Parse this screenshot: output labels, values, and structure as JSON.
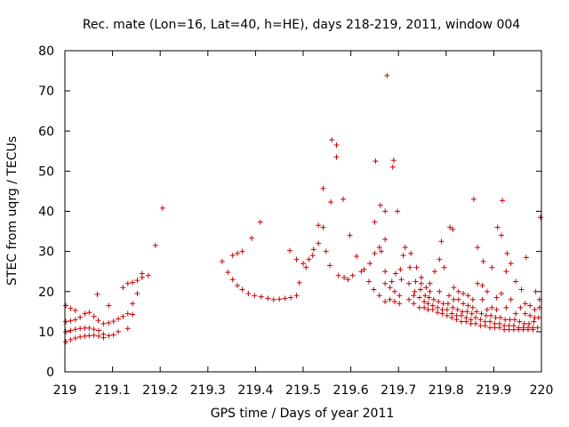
{
  "chart_data": {
    "type": "scatter",
    "title": "Rec. mate (Lon=16, Lat=40, h=HE), days 218-219, 2011, window 004",
    "xlabel": "GPS time / Days of year 2011",
    "ylabel": "STEC from uqrg / TECUs",
    "xlim": [
      219,
      220
    ],
    "ylim": [
      0,
      80
    ],
    "xticks": [
      219,
      219.1,
      219.2,
      219.3,
      219.4,
      219.5,
      219.6,
      219.7,
      219.8,
      219.9,
      220
    ],
    "xtick_labels": [
      "219",
      "219.1",
      "219.2",
      "219.3",
      "219.4",
      "219.5",
      "219.6",
      "219.7",
      "219.8",
      "219.9",
      "220"
    ],
    "yticks": [
      0,
      10,
      20,
      30,
      40,
      50,
      60,
      70,
      80
    ],
    "ytick_labels": [
      "0",
      "10",
      "20",
      "30",
      "40",
      "50",
      "60",
      "70",
      "80"
    ],
    "grid": false,
    "marker": "+",
    "color": "#cc0000",
    "series": [
      {
        "name": "STEC",
        "points": [
          [
            219.002,
            16.5
          ],
          [
            219.002,
            12.5
          ],
          [
            219.002,
            10.0
          ],
          [
            219.002,
            7.5
          ],
          [
            219.012,
            15.8
          ],
          [
            219.012,
            12.7
          ],
          [
            219.012,
            10.3
          ],
          [
            219.012,
            8.0
          ],
          [
            219.022,
            15.3
          ],
          [
            219.022,
            13.0
          ],
          [
            219.022,
            10.6
          ],
          [
            219.022,
            8.4
          ],
          [
            219.032,
            13.6
          ],
          [
            219.032,
            10.8
          ],
          [
            219.032,
            8.7
          ],
          [
            219.042,
            14.5
          ],
          [
            219.042,
            10.9
          ],
          [
            219.042,
            8.9
          ],
          [
            219.051,
            14.8
          ],
          [
            219.051,
            10.9
          ],
          [
            219.051,
            9.0
          ],
          [
            219.061,
            13.8
          ],
          [
            219.061,
            10.6
          ],
          [
            219.061,
            9.1
          ],
          [
            219.068,
            19.3
          ],
          [
            219.07,
            12.8
          ],
          [
            219.071,
            10.3
          ],
          [
            219.071,
            8.9
          ],
          [
            219.081,
            12.0
          ],
          [
            219.081,
            9.4
          ],
          [
            219.081,
            8.5
          ],
          [
            219.092,
            16.5
          ],
          [
            219.092,
            12.2
          ],
          [
            219.092,
            9.0
          ],
          [
            219.102,
            12.6
          ],
          [
            219.102,
            9.2
          ],
          [
            219.112,
            13.2
          ],
          [
            219.112,
            10.0
          ],
          [
            219.122,
            21.0
          ],
          [
            219.122,
            13.8
          ],
          [
            219.132,
            22.0
          ],
          [
            219.132,
            14.5
          ],
          [
            219.132,
            10.8
          ],
          [
            219.142,
            22.3
          ],
          [
            219.142,
            17.0
          ],
          [
            219.142,
            14.3
          ],
          [
            219.152,
            22.8
          ],
          [
            219.152,
            19.5
          ],
          [
            219.162,
            24.5
          ],
          [
            219.162,
            23.5
          ],
          [
            219.175,
            24.0
          ],
          [
            219.19,
            31.5
          ],
          [
            219.205,
            40.8
          ],
          [
            219.33,
            27.5
          ],
          [
            219.342,
            24.8
          ],
          [
            219.352,
            23.0
          ],
          [
            219.352,
            29.0
          ],
          [
            219.362,
            21.5
          ],
          [
            219.362,
            29.5
          ],
          [
            219.372,
            20.5
          ],
          [
            219.372,
            30.0
          ],
          [
            219.385,
            19.5
          ],
          [
            219.392,
            33.3
          ],
          [
            219.398,
            19.0
          ],
          [
            219.41,
            37.3
          ],
          [
            219.412,
            18.7
          ],
          [
            219.426,
            18.3
          ],
          [
            219.438,
            18.0
          ],
          [
            219.45,
            18.1
          ],
          [
            219.462,
            18.3
          ],
          [
            219.472,
            30.2
          ],
          [
            219.474,
            18.5
          ],
          [
            219.486,
            19.0
          ],
          [
            219.486,
            28.0
          ],
          [
            219.492,
            22.2
          ],
          [
            219.5,
            27.0
          ],
          [
            219.506,
            26.0
          ],
          [
            219.512,
            28.0
          ],
          [
            219.52,
            29.0
          ],
          [
            219.522,
            30.5
          ],
          [
            219.532,
            32.0
          ],
          [
            219.532,
            36.5
          ],
          [
            219.542,
            45.7
          ],
          [
            219.542,
            36.0
          ],
          [
            219.548,
            30.0
          ],
          [
            219.556,
            26.5
          ],
          [
            219.558,
            42.3
          ],
          [
            219.56,
            57.8
          ],
          [
            219.57,
            56.5
          ],
          [
            219.57,
            53.5
          ],
          [
            219.574,
            24.0
          ],
          [
            219.584,
            43.0
          ],
          [
            219.586,
            23.5
          ],
          [
            219.594,
            23.0
          ],
          [
            219.598,
            34.0
          ],
          [
            219.604,
            24.0
          ],
          [
            219.612,
            28.8
          ],
          [
            219.622,
            25.0
          ],
          [
            219.628,
            25.5
          ],
          [
            219.638,
            22.5
          ],
          [
            219.64,
            27.0
          ],
          [
            219.648,
            20.5
          ],
          [
            219.65,
            29.5
          ],
          [
            219.65,
            37.3
          ],
          [
            219.652,
            52.5
          ],
          [
            219.66,
            19.0
          ],
          [
            219.66,
            31.0
          ],
          [
            219.662,
            41.5
          ],
          [
            219.664,
            30.0
          ],
          [
            219.672,
            17.5
          ],
          [
            219.672,
            22.0
          ],
          [
            219.672,
            25.0
          ],
          [
            219.672,
            33.0
          ],
          [
            219.672,
            40.0
          ],
          [
            219.676,
            73.8
          ],
          [
            219.682,
            18.0
          ],
          [
            219.682,
            21.0
          ],
          [
            219.686,
            22.5
          ],
          [
            219.688,
            51.0
          ],
          [
            219.69,
            52.7
          ],
          [
            219.692,
            17.5
          ],
          [
            219.692,
            20.0
          ],
          [
            219.694,
            24.5
          ],
          [
            219.698,
            40.0
          ],
          [
            219.702,
            17.0
          ],
          [
            219.702,
            19.0
          ],
          [
            219.704,
            25.5
          ],
          [
            219.706,
            23.0
          ],
          [
            219.71,
            29.0
          ],
          [
            219.714,
            31.0
          ],
          [
            219.722,
            18.0
          ],
          [
            219.722,
            22.0
          ],
          [
            219.724,
            26.0
          ],
          [
            219.726,
            29.5
          ],
          [
            219.732,
            17.0
          ],
          [
            219.732,
            19.0
          ],
          [
            219.734,
            20.0
          ],
          [
            219.736,
            22.5
          ],
          [
            219.738,
            26.0
          ],
          [
            219.744,
            16.0
          ],
          [
            219.744,
            18.5
          ],
          [
            219.746,
            20.5
          ],
          [
            219.748,
            22.0
          ],
          [
            219.748,
            23.5
          ],
          [
            219.754,
            16.0
          ],
          [
            219.754,
            17.5
          ],
          [
            219.756,
            19.0
          ],
          [
            219.758,
            21.0
          ],
          [
            219.762,
            15.5
          ],
          [
            219.762,
            17.0
          ],
          [
            219.764,
            18.5
          ],
          [
            219.766,
            20.0
          ],
          [
            219.766,
            22.0
          ],
          [
            219.772,
            15.5
          ],
          [
            219.772,
            16.5
          ],
          [
            219.774,
            18.0
          ],
          [
            219.776,
            25.0
          ],
          [
            219.782,
            14.8
          ],
          [
            219.782,
            16.0
          ],
          [
            219.784,
            17.5
          ],
          [
            219.786,
            20.0
          ],
          [
            219.786,
            28.0
          ],
          [
            219.79,
            32.5
          ],
          [
            219.792,
            14.5
          ],
          [
            219.792,
            15.5
          ],
          [
            219.794,
            17.0
          ],
          [
            219.796,
            26.0
          ],
          [
            219.802,
            14.0
          ],
          [
            219.802,
            15.5
          ],
          [
            219.804,
            17.0
          ],
          [
            219.806,
            19.0
          ],
          [
            219.808,
            36.0
          ],
          [
            219.814,
            35.5
          ],
          [
            219.812,
            13.5
          ],
          [
            219.812,
            14.5
          ],
          [
            219.814,
            16.0
          ],
          [
            219.816,
            18.0
          ],
          [
            219.816,
            21.0
          ],
          [
            219.822,
            13.0
          ],
          [
            219.822,
            14.0
          ],
          [
            219.824,
            15.5
          ],
          [
            219.826,
            18.0
          ],
          [
            219.826,
            20.0
          ],
          [
            219.832,
            12.5
          ],
          [
            219.832,
            14.0
          ],
          [
            219.834,
            15.0
          ],
          [
            219.836,
            17.0
          ],
          [
            219.836,
            19.5
          ],
          [
            219.842,
            12.5
          ],
          [
            219.842,
            13.5
          ],
          [
            219.844,
            15.0
          ],
          [
            219.846,
            16.5
          ],
          [
            219.846,
            19.0
          ],
          [
            219.852,
            12.0
          ],
          [
            219.852,
            13.0
          ],
          [
            219.854,
            14.5
          ],
          [
            219.856,
            16.0
          ],
          [
            219.856,
            18.0
          ],
          [
            219.858,
            43.0
          ],
          [
            219.862,
            12.0
          ],
          [
            219.862,
            13.5
          ],
          [
            219.864,
            15.0
          ],
          [
            219.866,
            22.0
          ],
          [
            219.866,
            31.0
          ],
          [
            219.872,
            11.5
          ],
          [
            219.872,
            13.0
          ],
          [
            219.874,
            14.5
          ],
          [
            219.876,
            18.0
          ],
          [
            219.876,
            21.5
          ],
          [
            219.878,
            27.5
          ],
          [
            219.882,
            11.5
          ],
          [
            219.882,
            12.5
          ],
          [
            219.884,
            14.0
          ],
          [
            219.886,
            15.5
          ],
          [
            219.886,
            20.0
          ],
          [
            219.892,
            11.0
          ],
          [
            219.892,
            12.5
          ],
          [
            219.894,
            14.0
          ],
          [
            219.896,
            16.0
          ],
          [
            219.896,
            26.0
          ],
          [
            219.902,
            11.0
          ],
          [
            219.902,
            12.0
          ],
          [
            219.904,
            13.5
          ],
          [
            219.906,
            15.5
          ],
          [
            219.906,
            18.5
          ],
          [
            219.908,
            36.0
          ],
          [
            219.912,
            11.0
          ],
          [
            219.912,
            12.0
          ],
          [
            219.914,
            13.5
          ],
          [
            219.916,
            19.5
          ],
          [
            219.916,
            34.0
          ],
          [
            219.918,
            42.7
          ],
          [
            219.922,
            10.5
          ],
          [
            219.922,
            11.5
          ],
          [
            219.924,
            13.0
          ],
          [
            219.926,
            16.0
          ],
          [
            219.926,
            25.0
          ],
          [
            219.928,
            29.5
          ],
          [
            219.932,
            10.5
          ],
          [
            219.932,
            11.5
          ],
          [
            219.934,
            13.0
          ],
          [
            219.936,
            18.0
          ],
          [
            219.936,
            27.0
          ],
          [
            219.942,
            10.5
          ],
          [
            219.942,
            11.5
          ],
          [
            219.944,
            13.0
          ],
          [
            219.946,
            14.5
          ],
          [
            219.946,
            22.5
          ],
          [
            219.952,
            10.5
          ],
          [
            219.952,
            11.0
          ],
          [
            219.954,
            12.5
          ],
          [
            219.956,
            16.0
          ],
          [
            219.958,
            20.5
          ],
          [
            219.962,
            10.5
          ],
          [
            219.962,
            11.0
          ],
          [
            219.964,
            12.0
          ],
          [
            219.966,
            14.5
          ],
          [
            219.966,
            17.0
          ],
          [
            219.968,
            28.5
          ],
          [
            219.972,
            10.5
          ],
          [
            219.972,
            11.0
          ],
          [
            219.974,
            12.0
          ],
          [
            219.976,
            14.0
          ],
          [
            219.976,
            16.5
          ],
          [
            219.982,
            10.5
          ],
          [
            219.982,
            11.0
          ],
          [
            219.984,
            12.5
          ],
          [
            219.986,
            13.5
          ],
          [
            219.986,
            15.5
          ],
          [
            219.988,
            20.0
          ],
          [
            219.992,
            11.0
          ],
          [
            219.994,
            13.5
          ],
          [
            219.996,
            16.0
          ],
          [
            219.996,
            18.0
          ],
          [
            219.998,
            38.5
          ]
        ]
      }
    ]
  }
}
